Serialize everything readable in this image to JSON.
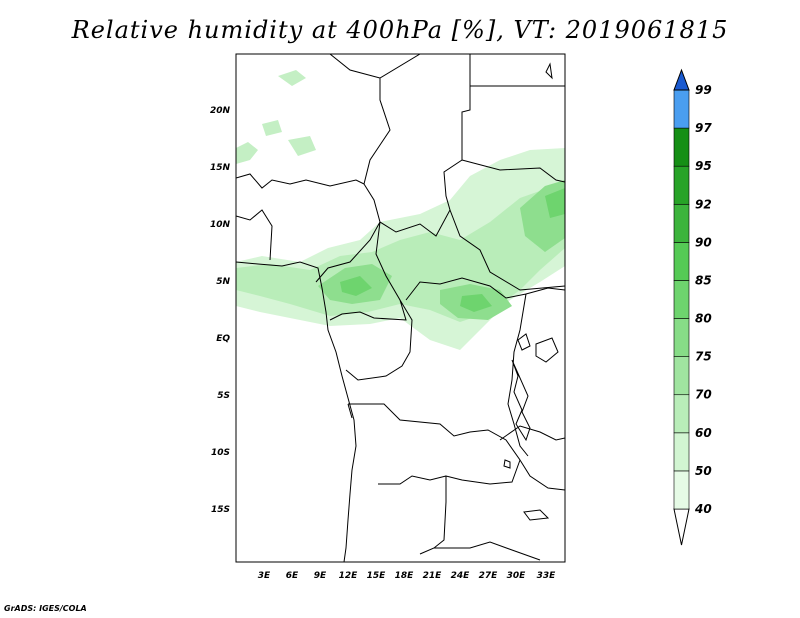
{
  "title": "Relative humidity at 400hPa [%], VT: 2019061815",
  "credit": "GrADS: IGES/COLA",
  "map": {
    "lon_labels": [
      "3E",
      "6E",
      "9E",
      "12E",
      "15E",
      "18E",
      "21E",
      "24E",
      "27E",
      "30E",
      "33E"
    ],
    "lat_labels": [
      "20N",
      "15N",
      "10N",
      "5N",
      "EQ",
      "5S",
      "10S",
      "15S"
    ]
  },
  "colorbar": {
    "labels": [
      "40",
      "50",
      "60",
      "70",
      "75",
      "80",
      "85",
      "90",
      "92",
      "95",
      "97",
      "99"
    ],
    "colors": [
      "#e6fbe6",
      "#d2f5d2",
      "#b9edb9",
      "#a0e4a0",
      "#87dc87",
      "#6ed46e",
      "#55ca55",
      "#3cb43c",
      "#27a327",
      "#158f15",
      "#4a9ef0",
      "#2a7ce0",
      "#1a5ad0"
    ]
  }
}
